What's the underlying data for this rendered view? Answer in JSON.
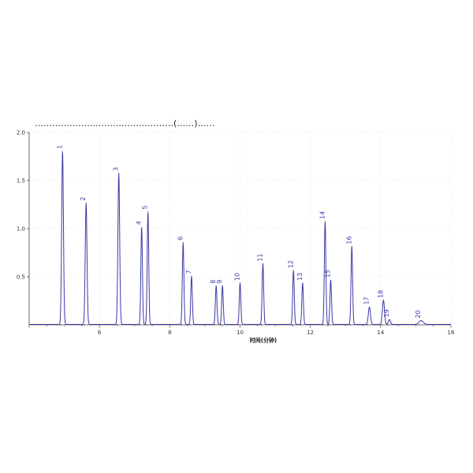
{
  "chart_data": {
    "type": "line",
    "title": "…………………………………………(……)……",
    "xlabel": "时间(分钟)",
    "ylabel": "",
    "xlim": [
      4.0,
      16.0
    ],
    "ylim": [
      0.0,
      2.0
    ],
    "x_ticks": [
      "6",
      "8",
      "10",
      "12",
      "14",
      "16"
    ],
    "y_ticks": [
      "2.0",
      "1.5",
      "1.0",
      "0.5"
    ],
    "grid": true,
    "colors": {
      "trace": "#3a3aa8",
      "baseline_marks": "#c23a3a",
      "axis": "#444444",
      "grid": "#e6e6e6"
    },
    "peaks": [
      {
        "label": "1",
        "x": 4.95,
        "height": 1.8,
        "width": 0.025
      },
      {
        "label": "2",
        "x": 5.62,
        "height": 1.26,
        "width": 0.025
      },
      {
        "label": "3",
        "x": 6.55,
        "height": 1.57,
        "width": 0.025
      },
      {
        "label": "4",
        "x": 7.2,
        "height": 1.01,
        "width": 0.022
      },
      {
        "label": "5",
        "x": 7.38,
        "height": 1.17,
        "width": 0.022
      },
      {
        "label": "6",
        "x": 8.38,
        "height": 0.85,
        "width": 0.022
      },
      {
        "label": "7",
        "x": 8.62,
        "height": 0.5,
        "width": 0.022
      },
      {
        "label": "8",
        "x": 9.32,
        "height": 0.4,
        "width": 0.022
      },
      {
        "label": "9",
        "x": 9.5,
        "height": 0.4,
        "width": 0.022
      },
      {
        "label": "10",
        "x": 10.0,
        "height": 0.43,
        "width": 0.022
      },
      {
        "label": "11",
        "x": 10.65,
        "height": 0.63,
        "width": 0.022
      },
      {
        "label": "12",
        "x": 11.52,
        "height": 0.56,
        "width": 0.022
      },
      {
        "label": "13",
        "x": 11.78,
        "height": 0.43,
        "width": 0.022
      },
      {
        "label": "14",
        "x": 12.42,
        "height": 1.07,
        "width": 0.022
      },
      {
        "label": "15",
        "x": 12.58,
        "height": 0.46,
        "width": 0.022
      },
      {
        "label": "16",
        "x": 13.18,
        "height": 0.81,
        "width": 0.022
      },
      {
        "label": "17",
        "x": 13.68,
        "height": 0.18,
        "width": 0.03
      },
      {
        "label": "18",
        "x": 14.08,
        "height": 0.25,
        "width": 0.03
      },
      {
        "label": "19",
        "x": 14.25,
        "height": 0.05,
        "width": 0.03
      },
      {
        "label": "20",
        "x": 15.15,
        "height": 0.04,
        "width": 0.06
      }
    ]
  }
}
